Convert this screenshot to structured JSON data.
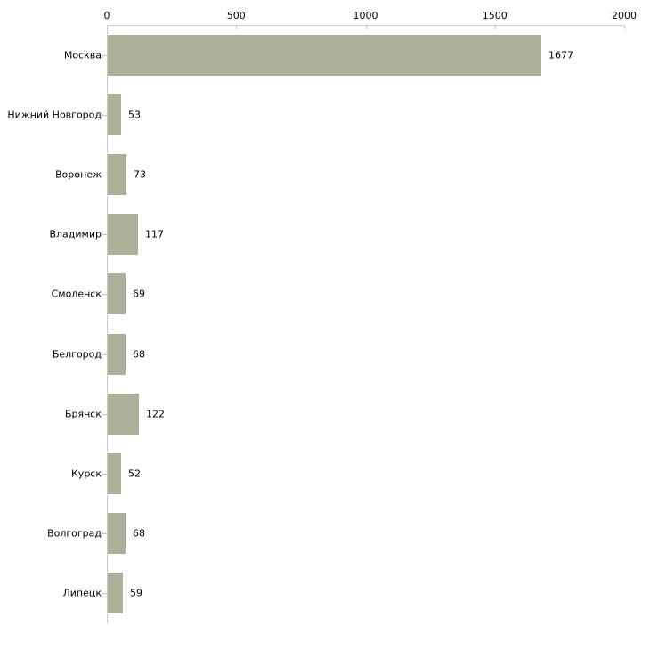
{
  "chart_data": {
    "type": "bar",
    "orientation": "horizontal",
    "title": "",
    "xlabel": "",
    "ylabel": "",
    "categories": [
      "Москва",
      "Нижний Новгород",
      "Воронеж",
      "Владимир",
      "Смоленск",
      "Белгород",
      "Брянск",
      "Курск",
      "Волгоград",
      "Липецк"
    ],
    "values": [
      1677,
      53,
      73,
      117,
      69,
      68,
      122,
      52,
      68,
      59
    ],
    "xlim": [
      0,
      2000
    ],
    "xticks": [
      0,
      500,
      1000,
      1500,
      2000
    ],
    "axis_position": "top",
    "grid": false,
    "legend": false,
    "colors": {
      "bar": "#abb198",
      "axis_line": "#cccccc",
      "tick_mark": "#c6c69e",
      "text": "#000000",
      "background": "#ffffff"
    }
  }
}
